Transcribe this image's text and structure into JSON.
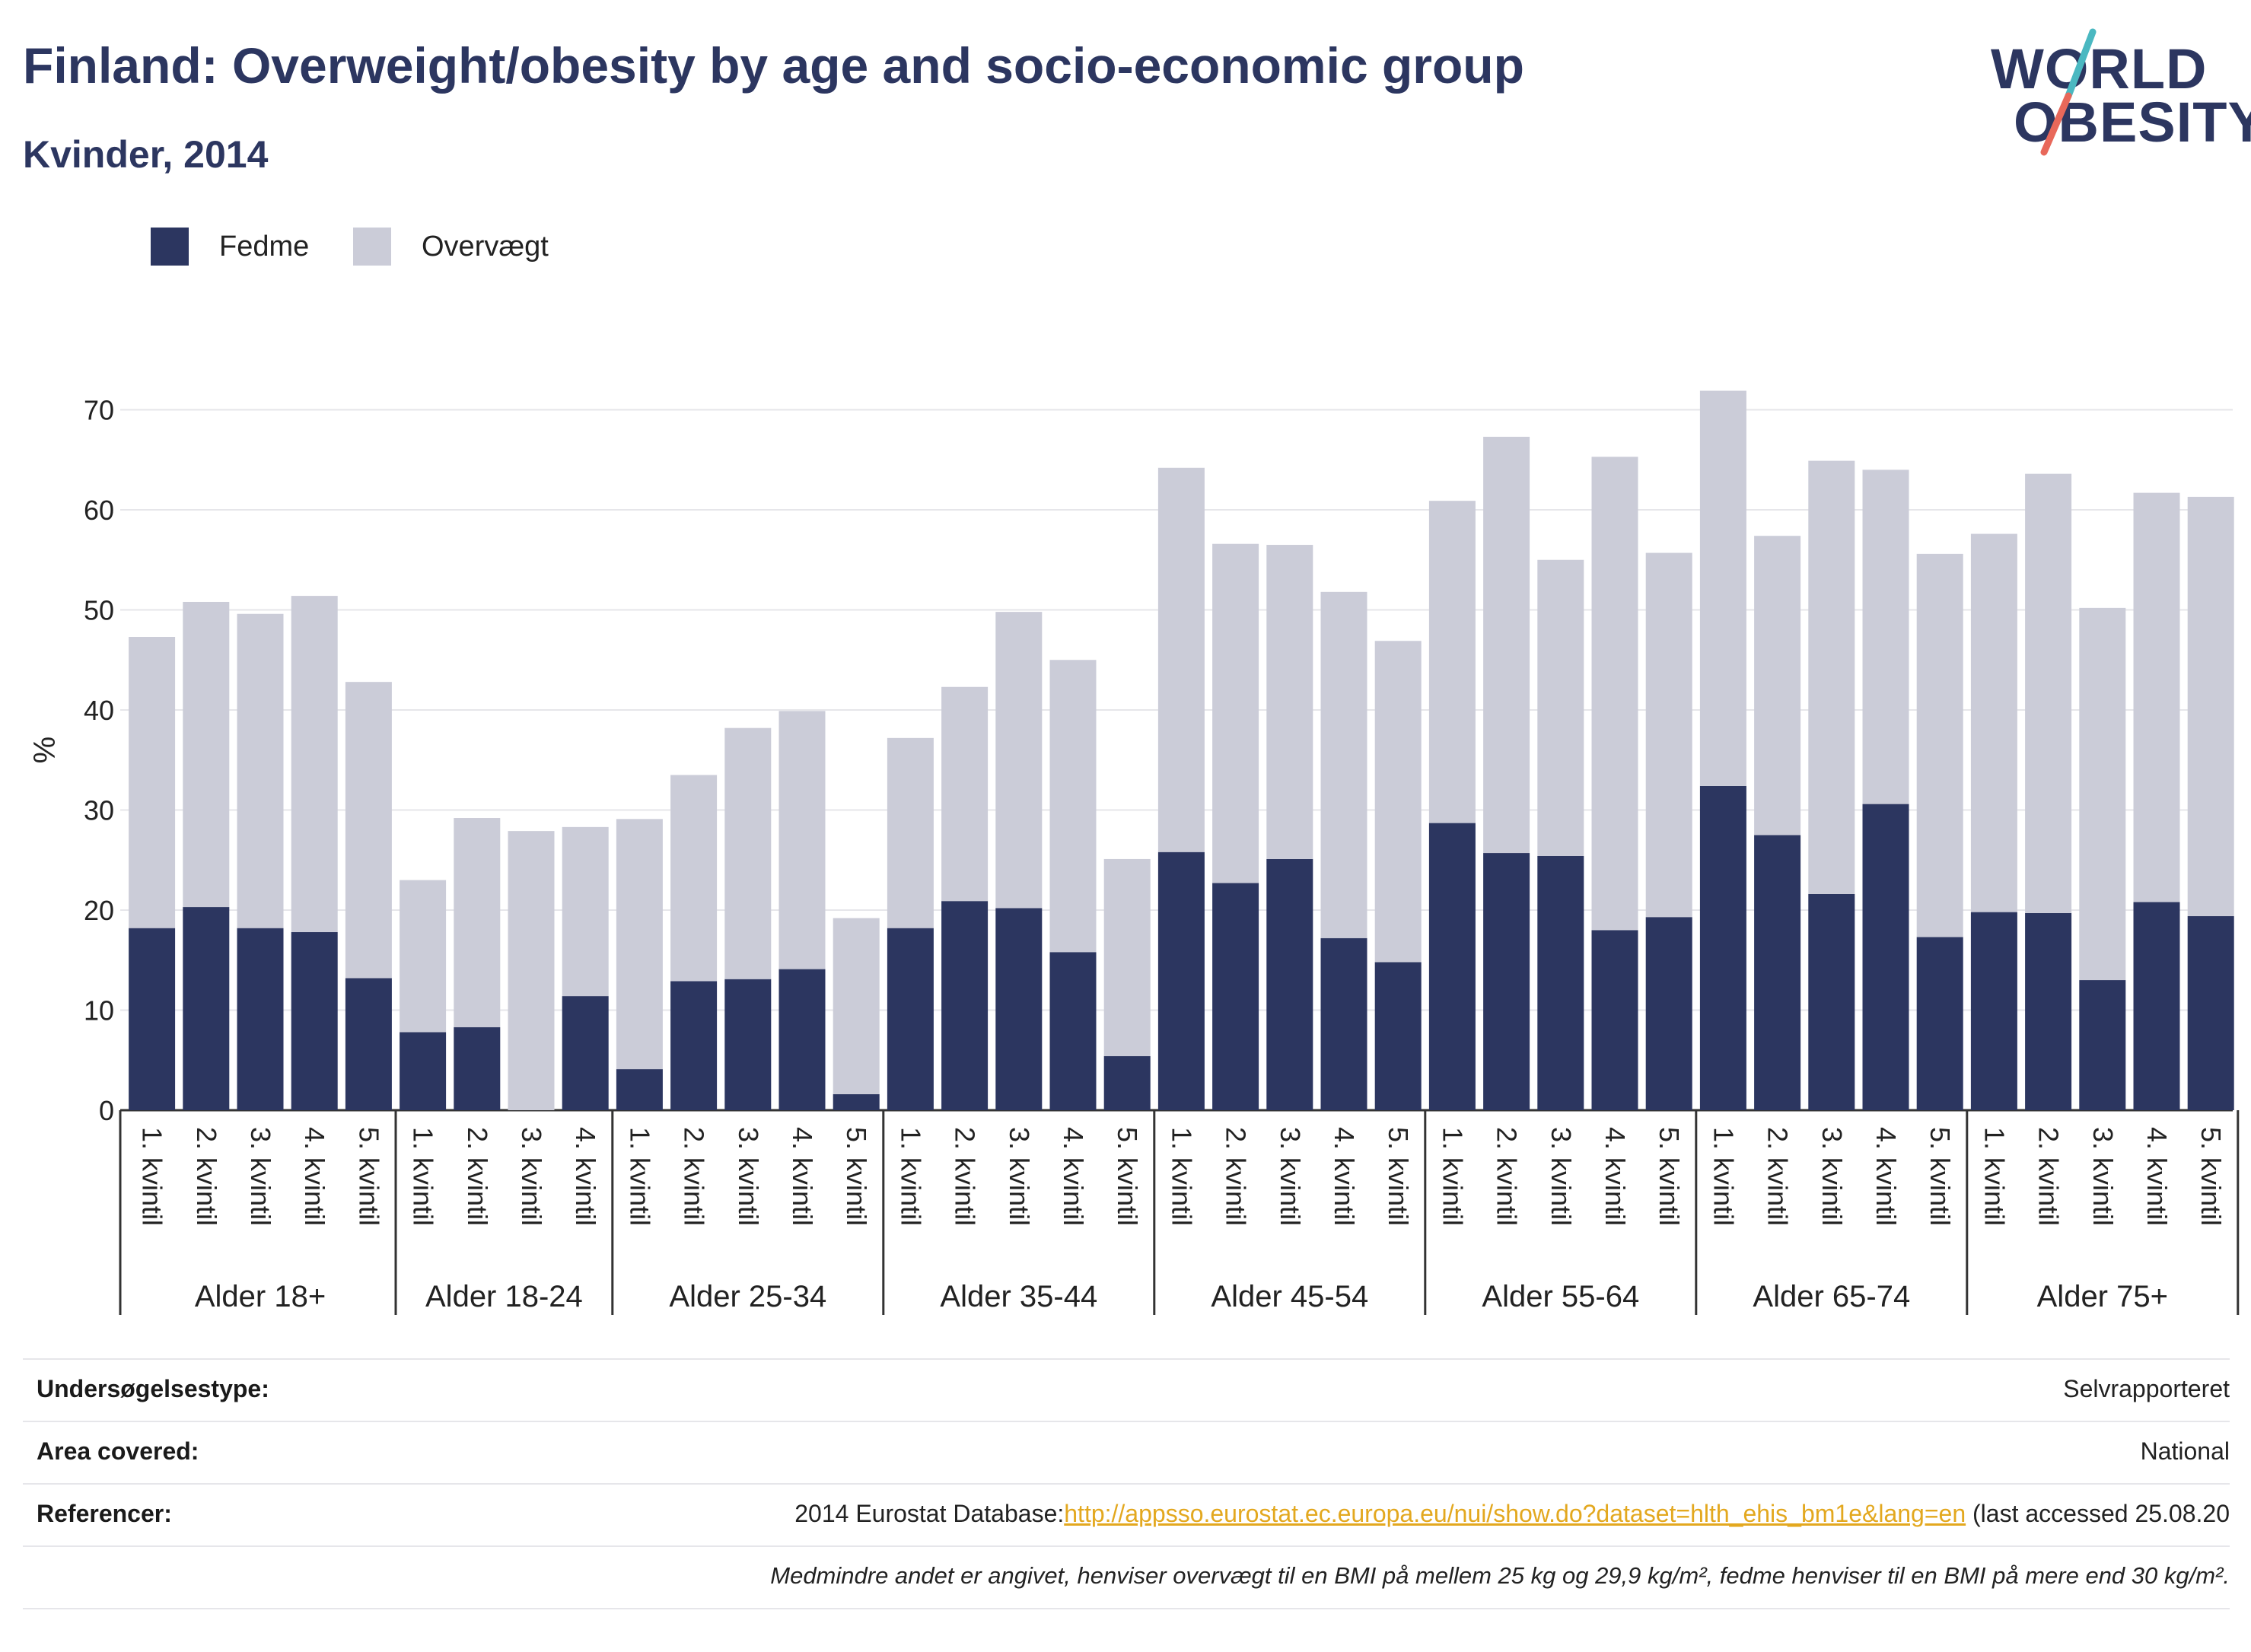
{
  "header": {
    "title": "Finland: Overweight/obesity by age and socio-economic group",
    "subtitle": "Kvinder, 2014"
  },
  "logo": {
    "line1": "WORLD",
    "line2": "OBESITY",
    "accent_colors": [
      "#4ab8c1",
      "#e8685a"
    ]
  },
  "colors": {
    "fedme": "#2c3660",
    "overvaegt": "#cbccd8",
    "grid": "#e6e6ea",
    "text": "#2c3660"
  },
  "chart_data": {
    "type": "bar",
    "stacked": true,
    "ylabel": "%",
    "ylim": [
      0,
      72
    ],
    "yticks": [
      0,
      10,
      20,
      30,
      40,
      50,
      60,
      70
    ],
    "grid": true,
    "legend_position": "top-left",
    "legend": [
      "Fedme",
      "Overvægt"
    ],
    "groups": [
      {
        "label": "Alder 18+",
        "categories": [
          "1. kvintil",
          "2. kvintil",
          "3. kvintil",
          "4. kvintil",
          "5. kvintil"
        ],
        "fedme": [
          18.2,
          20.3,
          18.2,
          17.8,
          13.2
        ],
        "overvaegt": [
          29.1,
          30.5,
          31.4,
          33.6,
          29.6
        ]
      },
      {
        "label": "Alder 18-24",
        "categories": [
          "1. kvintil",
          "2. kvintil",
          "3. kvintil",
          "4. kvintil"
        ],
        "fedme": [
          7.8,
          8.3,
          0,
          11.4
        ],
        "overvaegt": [
          15.2,
          20.9,
          27.9,
          16.9
        ]
      },
      {
        "label": "Alder 25-34",
        "categories": [
          "1. kvintil",
          "2. kvintil",
          "3. kvintil",
          "4. kvintil",
          "5. kvintil"
        ],
        "fedme": [
          4.1,
          12.9,
          13.1,
          14.1,
          1.6
        ],
        "overvaegt": [
          25.0,
          20.6,
          25.1,
          25.8,
          17.6
        ]
      },
      {
        "label": "Alder 35-44",
        "categories": [
          "1. kvintil",
          "2. kvintil",
          "3. kvintil",
          "4. kvintil",
          "5. kvintil"
        ],
        "fedme": [
          18.2,
          20.9,
          20.2,
          15.8,
          5.4
        ],
        "overvaegt": [
          19.0,
          21.4,
          29.6,
          29.2,
          19.7
        ]
      },
      {
        "label": "Alder 45-54",
        "categories": [
          "1. kvintil",
          "2. kvintil",
          "3. kvintil",
          "4. kvintil",
          "5. kvintil"
        ],
        "fedme": [
          25.8,
          22.7,
          25.1,
          17.2,
          14.8
        ],
        "overvaegt": [
          38.4,
          33.9,
          31.4,
          34.6,
          32.1
        ]
      },
      {
        "label": "Alder 55-64",
        "categories": [
          "1. kvintil",
          "2. kvintil",
          "3. kvintil",
          "4. kvintil",
          "5. kvintil"
        ],
        "fedme": [
          28.7,
          25.7,
          25.4,
          18.0,
          19.3
        ],
        "overvaegt": [
          32.2,
          41.6,
          29.6,
          47.3,
          36.4
        ]
      },
      {
        "label": "Alder 65-74",
        "categories": [
          "1. kvintil",
          "2. kvintil",
          "3. kvintil",
          "4. kvintil",
          "5. kvintil"
        ],
        "fedme": [
          32.4,
          27.5,
          21.6,
          30.6,
          17.3
        ],
        "overvaegt": [
          39.5,
          29.9,
          43.3,
          33.4,
          38.3
        ]
      },
      {
        "label": "Alder 75+",
        "categories": [
          "1. kvintil",
          "2. kvintil",
          "3. kvintil",
          "4. kvintil",
          "5. kvintil"
        ],
        "fedme": [
          19.8,
          19.7,
          13.0,
          20.8,
          19.4
        ],
        "overvaegt": [
          37.8,
          43.9,
          37.2,
          40.9,
          41.9
        ]
      }
    ]
  },
  "info": {
    "survey_type_label": "Undersøgelsestype:",
    "survey_type_value": "Selvrapporteret",
    "area_label": "Area covered:",
    "area_value": "National",
    "references_label": "Referencer:",
    "references_prefix": "2014 Eurostat Database:",
    "references_link": "http://appsso.eurostat.ec.europa.eu/nui/show.do?dataset=hlth_ehis_bm1e&lang=en",
    "references_suffix": " (last accessed 25.08.20",
    "note": "Medmindre andet er angivet, henviser overvægt til en BMI på mellem 25 kg og 29,9 kg/m², fedme henviser til en BMI på mere end 30 kg/m²."
  }
}
